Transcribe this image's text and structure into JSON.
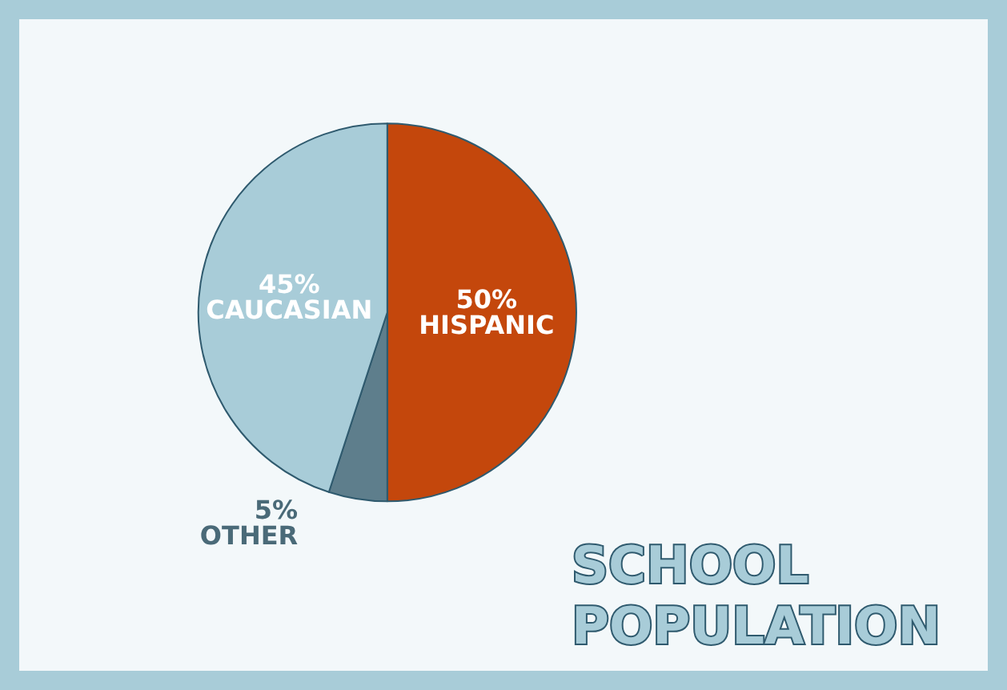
{
  "chart_data": {
    "type": "pie",
    "title": "SCHOOL POPULATION",
    "categories": [
      "HISPANIC",
      "OTHER",
      "CAUCASIAN"
    ],
    "values": [
      50,
      5,
      45
    ],
    "colors": [
      "#c4470c",
      "#5e7e8c",
      "#a8ccd8"
    ],
    "value_labels": [
      "50%",
      "5%",
      "45%"
    ],
    "legend": false
  }
}
